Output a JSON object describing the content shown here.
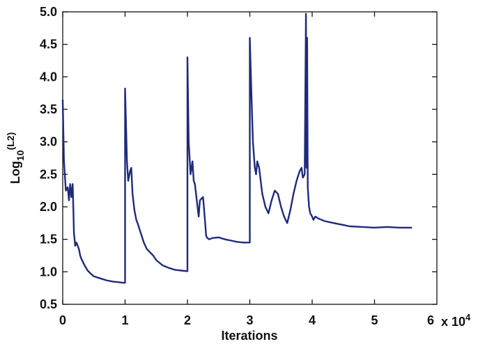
{
  "chart_data": {
    "type": "line",
    "xlabel": "Iterations",
    "ylabel": "Log",
    "ylabel_sub": "10",
    "ylabel_sup": "(L2)",
    "x_multiplier_text": "x 10",
    "x_multiplier_exp": "4",
    "xlim": [
      0,
      6
    ],
    "ylim": [
      0.5,
      5.0
    ],
    "x_ticks": [
      "0",
      "1",
      "2",
      "3",
      "4",
      "5",
      "6"
    ],
    "y_ticks": [
      "0.5",
      "1.0",
      "1.5",
      "2.0",
      "2.5",
      "3.0",
      "3.5",
      "4.0",
      "4.5",
      "5.0"
    ],
    "grid": false,
    "line_color": "#1f2a7a",
    "series": [
      {
        "x": [
          0,
          0.02,
          0.05,
          0.08,
          0.1,
          0.12,
          0.14,
          0.16,
          0.17,
          0.18,
          0.2,
          0.22,
          0.24,
          0.26,
          0.28,
          0.3,
          0.35,
          0.4,
          0.45,
          0.5,
          0.6,
          0.7,
          0.8,
          0.9,
          0.98,
          1.0,
          1.0,
          1.03,
          1.05,
          1.08,
          1.1,
          1.12,
          1.15,
          1.18,
          1.2,
          1.25,
          1.3,
          1.35,
          1.4,
          1.45,
          1.5,
          1.6,
          1.7,
          1.8,
          1.9,
          1.99,
          2.0,
          2.0,
          2.02,
          2.05,
          2.08,
          2.1,
          2.12,
          2.15,
          2.18,
          2.2,
          2.25,
          2.28,
          2.3,
          2.32,
          2.35,
          2.4,
          2.5,
          2.6,
          2.7,
          2.8,
          2.9,
          2.99,
          3.0,
          3.0,
          3.03,
          3.05,
          3.08,
          3.1,
          3.12,
          3.15,
          3.2,
          3.25,
          3.3,
          3.35,
          3.4,
          3.45,
          3.5,
          3.55,
          3.6,
          3.65,
          3.7,
          3.75,
          3.8,
          3.83,
          3.85,
          3.88,
          3.9,
          3.91,
          3.92,
          3.93,
          3.95,
          3.97,
          4.0,
          4.02,
          4.05,
          4.1,
          4.15,
          4.2,
          4.3,
          4.4,
          4.5,
          4.6,
          4.8,
          5.0,
          5.2,
          5.4,
          5.6
        ],
        "y": [
          3.65,
          2.7,
          2.25,
          2.3,
          2.1,
          2.35,
          2.15,
          2.35,
          2.0,
          1.6,
          1.4,
          1.45,
          1.4,
          1.35,
          1.25,
          1.2,
          1.1,
          1.02,
          0.97,
          0.93,
          0.9,
          0.87,
          0.85,
          0.84,
          0.83,
          0.83,
          3.82,
          2.7,
          2.4,
          2.55,
          2.6,
          2.2,
          1.95,
          1.8,
          1.75,
          1.6,
          1.45,
          1.35,
          1.3,
          1.25,
          1.18,
          1.1,
          1.06,
          1.03,
          1.02,
          1.01,
          1.01,
          4.3,
          3.0,
          2.5,
          2.7,
          2.4,
          2.35,
          2.1,
          1.85,
          2.1,
          2.15,
          1.8,
          1.55,
          1.52,
          1.5,
          1.52,
          1.53,
          1.5,
          1.48,
          1.46,
          1.45,
          1.45,
          1.45,
          4.6,
          3.6,
          3.0,
          2.6,
          2.5,
          2.7,
          2.6,
          2.2,
          2.0,
          1.9,
          2.1,
          2.25,
          2.2,
          2.0,
          1.85,
          1.75,
          1.95,
          2.2,
          2.4,
          2.55,
          2.6,
          2.45,
          2.5,
          4.97,
          2.6,
          4.6,
          2.3,
          2.0,
          1.9,
          1.85,
          1.8,
          1.85,
          1.82,
          1.8,
          1.78,
          1.76,
          1.74,
          1.72,
          1.7,
          1.69,
          1.68,
          1.69,
          1.68,
          1.68
        ]
      }
    ]
  }
}
